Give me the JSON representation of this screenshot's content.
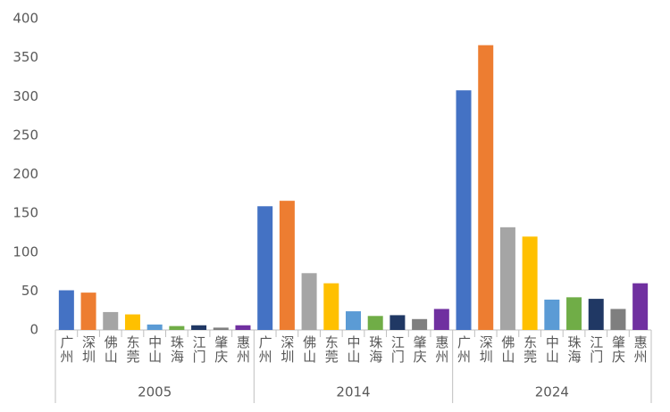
{
  "chart_data": {
    "type": "grouped-bar",
    "categories": [
      "广州",
      "深圳",
      "佛山",
      "东莞",
      "中山",
      "珠海",
      "江门",
      "肇庆",
      "惠州"
    ],
    "colors": [
      "#4472c4",
      "#ed7d31",
      "#a5a5a5",
      "#ffc000",
      "#5b9bd5",
      "#70ad47",
      "#203864",
      "#7f7f7f",
      "#7030a0"
    ],
    "groups": [
      {
        "label": "2005",
        "values": [
          51,
          48,
          23,
          20,
          7,
          5,
          6,
          3,
          6
        ]
      },
      {
        "label": "2014",
        "values": [
          159,
          166,
          73,
          60,
          24,
          18,
          19,
          14,
          27
        ]
      },
      {
        "label": "2024",
        "values": [
          308,
          366,
          132,
          120,
          39,
          42,
          40,
          27,
          60
        ]
      }
    ],
    "ylim": [
      0,
      400
    ],
    "yticks": [
      0,
      50,
      100,
      150,
      200,
      250,
      300,
      350,
      400
    ],
    "grid": false
  }
}
